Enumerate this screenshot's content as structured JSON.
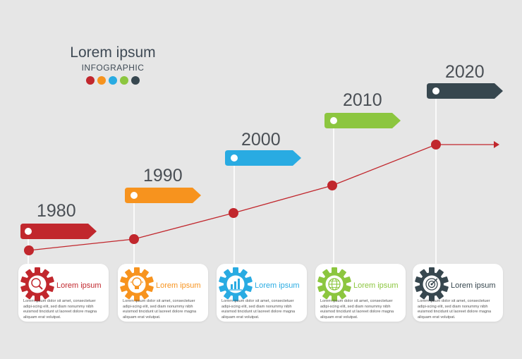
{
  "header": {
    "title": "Lorem ipsum",
    "subtitle": "INFOGRAPHIC",
    "dot_colors": [
      "#c1272d",
      "#f7931e",
      "#29abe2",
      "#8cc63f",
      "#37474f"
    ]
  },
  "milestones": [
    {
      "year": "1980",
      "color": "#c1272d",
      "title": "Lorem ipsum",
      "icon": "magnifier-icon",
      "text": "Lorem ipsum dolor sit amet, consectetuer adipi-scing elit, sed diam nonummy nibh euismod tincidunt ut laoreet dolore magna aliquam erat volutpat."
    },
    {
      "year": "1990",
      "color": "#f7931e",
      "title": "Lorem ipsum",
      "icon": "lightbulb-icon",
      "text": "Lorem ipsum dolor sit amet, consectetuer adipi-scing elit, sed diam nonummy nibh euismod tincidunt ut laoreet dolore magna aliquam erat volutpat."
    },
    {
      "year": "2000",
      "color": "#29abe2",
      "title": "Lorem ipsum",
      "icon": "bar-chart-icon",
      "text": "Lorem ipsum dolor sit amet, consectetuer adipi-scing elit, sed diam nonummy nibh euismod tincidunt ut laoreet dolore magna aliquam erat volutpat."
    },
    {
      "year": "2010",
      "color": "#8cc63f",
      "title": "Lorem ipsum",
      "icon": "globe-icon",
      "text": "Lorem ipsum dolor sit amet, consectetuer adipi-scing elit, sed diam nonummy nibh euismod tincidunt ut laoreet dolore magna aliquam erat volutpat."
    },
    {
      "year": "2020",
      "color": "#37474f",
      "title": "Lorem ipsum",
      "icon": "target-icon",
      "text": "Lorem ipsum dolor sit amet, consectetuer adipi-scing elit, sed diam nonummy nibh euismod tincidunt ut laoreet dolore magna aliquam erat volutpat."
    }
  ],
  "trend_line_color": "#c1272d"
}
